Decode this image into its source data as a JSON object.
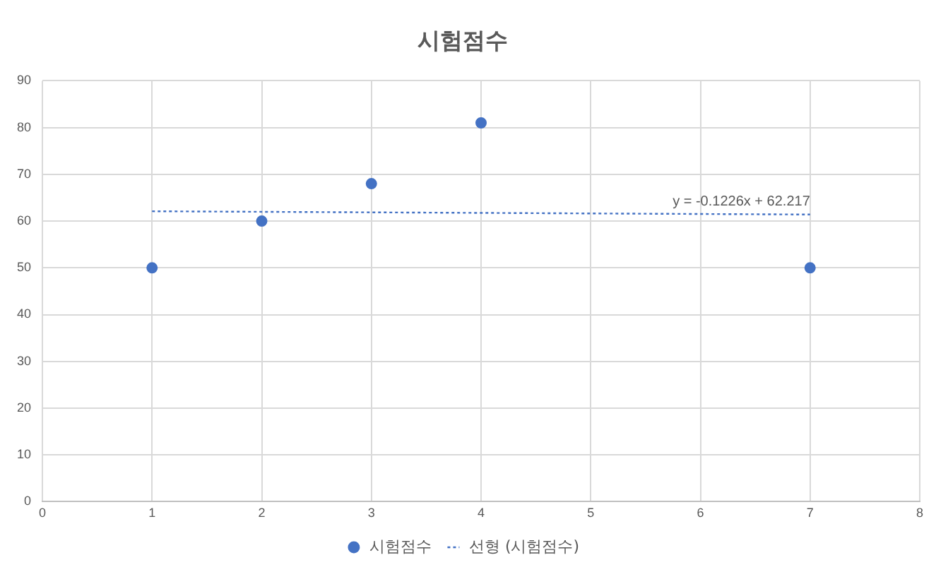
{
  "chart_data": {
    "type": "scatter",
    "title": "시험점수",
    "series": [
      {
        "name": "시험점수",
        "type": "scatter",
        "color": "#4472c4",
        "x": [
          1,
          2,
          3,
          4,
          7
        ],
        "values": [
          50,
          60,
          68,
          81,
          50
        ],
        "marker": "circle"
      },
      {
        "name": "선형 (시험점수)",
        "type": "line",
        "color": "#4472c4",
        "x": [
          1,
          7
        ],
        "values": [
          62.1,
          61.4
        ],
        "line_style": "dotted",
        "marker": "none"
      }
    ],
    "annotations": [
      "y = -0.1226x + 62.217"
    ],
    "xlim": [
      0,
      8
    ],
    "xticks": [
      0,
      1,
      2,
      3,
      4,
      5,
      6,
      7,
      8
    ],
    "ylim": [
      0,
      90
    ],
    "yticks": [
      0,
      10,
      20,
      30,
      40,
      50,
      60,
      70,
      80,
      90
    ],
    "grid": true,
    "legend": "bottom"
  }
}
